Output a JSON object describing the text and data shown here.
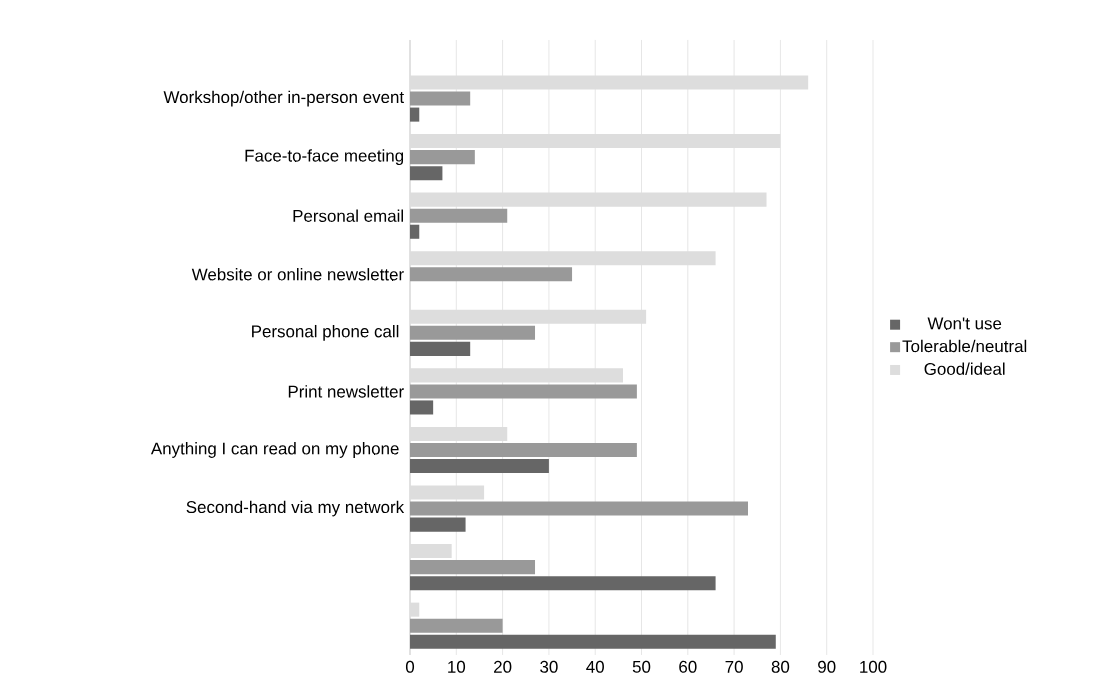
{
  "chart_data": {
    "type": "bar",
    "orientation": "horizontal",
    "categories": [
      "Workshop/other in-person event",
      "Face-to-face meeting",
      "Personal email",
      "Website or online newsletter",
      "Personal phone call ",
      "Print newsletter",
      "Anything I can read on my phone ",
      "Second-hand via my network",
      null,
      null
    ],
    "series": [
      {
        "name": "Won't use",
        "color": "#666666",
        "values": [
          2,
          7,
          2,
          0,
          13,
          5,
          30,
          12,
          66,
          79
        ]
      },
      {
        "name": "Tolerable/neutral",
        "color": "#999999",
        "values": [
          13,
          14,
          21,
          35,
          27,
          49,
          49,
          73,
          27,
          20
        ]
      },
      {
        "name": "Good/ideal",
        "color": "#dddddd",
        "values": [
          86,
          80,
          77,
          66,
          51,
          46,
          21,
          16,
          9,
          2
        ]
      }
    ],
    "xlim": [
      0,
      100
    ],
    "xticks": [
      0,
      10,
      20,
      30,
      40,
      50,
      60,
      70,
      80,
      90,
      100
    ],
    "grid": "x",
    "legend": "right"
  }
}
